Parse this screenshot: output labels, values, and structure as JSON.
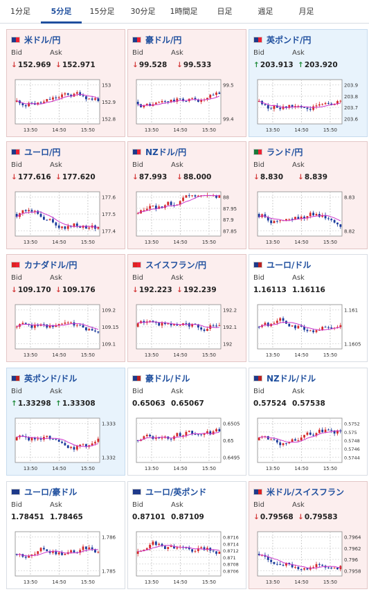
{
  "tabs": [
    {
      "label": "1分足",
      "active": false
    },
    {
      "label": "5分足",
      "active": true
    },
    {
      "label": "15分足",
      "active": false
    },
    {
      "label": "30分足",
      "active": false
    },
    {
      "label": "1時間足",
      "active": false
    },
    {
      "label": "日足",
      "active": false
    },
    {
      "label": "週足",
      "active": false
    },
    {
      "label": "月足",
      "active": false
    }
  ],
  "colors": {
    "up_candle": "#d42a2a",
    "down_candle": "#1a3a9c",
    "ma_line": "#cc33cc",
    "ma2_line": "#33aaee"
  },
  "cards": [
    {
      "pair": "米ドル/円",
      "bid_label": "Bid",
      "ask_label": "Ask",
      "bid": "152.969",
      "ask": "152.971",
      "dir": "down",
      "flag": [
        "#1e3a8a",
        "#e23"
      ],
      "yticks": [
        "153",
        "152.9",
        "152.8"
      ],
      "xticks": [
        "13:50",
        "14:50",
        "15:50"
      ]
    },
    {
      "pair": "豪ドル/円",
      "bid_label": "Bid",
      "ask_label": "Ask",
      "bid": "99.528",
      "ask": "99.533",
      "dir": "down",
      "flag": [
        "#1e3a8a",
        "#e23"
      ],
      "yticks": [
        "99.5",
        "99.4"
      ],
      "xticks": [
        "13:50",
        "14:50",
        "15:50"
      ]
    },
    {
      "pair": "英ポンド/円",
      "bid_label": "Bid",
      "ask_label": "Ask",
      "bid": "203.913",
      "ask": "203.920",
      "dir": "up",
      "flag": [
        "#1e3a8a",
        "#e23"
      ],
      "yticks": [
        "203.9",
        "203.8",
        "203.7",
        "203.6"
      ],
      "xticks": [
        "13:50",
        "14:50",
        "15:50"
      ]
    },
    {
      "pair": "ユーロ/円",
      "bid_label": "Bid",
      "ask_label": "Ask",
      "bid": "177.616",
      "ask": "177.620",
      "dir": "down",
      "flag": [
        "#1e3a8a",
        "#e23"
      ],
      "yticks": [
        "177.6",
        "177.5",
        "177.4"
      ],
      "xticks": [
        "13:50",
        "14:50",
        "15:50"
      ]
    },
    {
      "pair": "NZドル/円",
      "bid_label": "Bid",
      "ask_label": "Ask",
      "bid": "87.993",
      "ask": "88.000",
      "dir": "down",
      "flag": [
        "#1e3a8a",
        "#e23"
      ],
      "yticks": [
        "88",
        "87.95",
        "87.9",
        "87.85"
      ],
      "xticks": [
        "13:50",
        "14:50",
        "15:50"
      ]
    },
    {
      "pair": "ランド/円",
      "bid_label": "Bid",
      "ask_label": "Ask",
      "bid": "8.830",
      "ask": "8.839",
      "dir": "down",
      "flag": [
        "#1a7a3a",
        "#e23"
      ],
      "yticks": [
        "8.83",
        "8.82"
      ],
      "xticks": [
        "13:50",
        "14:50",
        "15:50"
      ]
    },
    {
      "pair": "カナダドル/円",
      "bid_label": "Bid",
      "ask_label": "Ask",
      "bid": "109.170",
      "ask": "109.176",
      "dir": "down",
      "flag": [
        "#d22",
        "#e23"
      ],
      "yticks": [
        "109.2",
        "109.15",
        "109.1"
      ],
      "xticks": [
        "13:50",
        "14:50",
        "15:50"
      ]
    },
    {
      "pair": "スイスフラン/円",
      "bid_label": "Bid",
      "ask_label": "Ask",
      "bid": "192.223",
      "ask": "192.239",
      "dir": "down",
      "flag": [
        "#d22",
        "#e23"
      ],
      "yticks": [
        "192.2",
        "192.1",
        "192"
      ],
      "xticks": [
        "13:50",
        "14:50",
        "15:50"
      ]
    },
    {
      "pair": "ユーロ/ドル",
      "bid_label": "Bid",
      "ask_label": "Ask",
      "bid": "1.16113",
      "ask": "1.16116",
      "dir": "none",
      "flag": [
        "#1e3a8a",
        "#b22"
      ],
      "yticks": [
        "1.161",
        "1.1605"
      ],
      "xticks": [
        "13:50",
        "14:50",
        "15:50"
      ]
    },
    {
      "pair": "英ポンド/ドル",
      "bid_label": "Bid",
      "ask_label": "Ask",
      "bid": "1.33298",
      "ask": "1.33308",
      "dir": "up",
      "flag": [
        "#1e3a8a",
        "#b22"
      ],
      "yticks": [
        "1.333",
        "1.332"
      ],
      "xticks": [
        "13:50",
        "14:50",
        "15:50"
      ]
    },
    {
      "pair": "豪ドル/ドル",
      "bid_label": "Bid",
      "ask_label": "Ask",
      "bid": "0.65063",
      "ask": "0.65067",
      "dir": "none",
      "flag": [
        "#1e3a8a",
        "#b22"
      ],
      "yticks": [
        "0.6505",
        "0.65",
        "0.6495"
      ],
      "xticks": [
        "13:50",
        "14:50",
        "15:50"
      ]
    },
    {
      "pair": "NZドル/ドル",
      "bid_label": "Bid",
      "ask_label": "Ask",
      "bid": "0.57524",
      "ask": "0.57538",
      "dir": "none",
      "flag": [
        "#1e3a8a",
        "#b22"
      ],
      "yticks": [
        "0.5752",
        "0.575",
        "0.5748",
        "0.5746",
        "0.5744"
      ],
      "xticks": [
        "13:50",
        "14:50",
        "15:50"
      ]
    },
    {
      "pair": "ユーロ/豪ドル",
      "bid_label": "Bid",
      "ask_label": "Ask",
      "bid": "1.78451",
      "ask": "1.78465",
      "dir": "none",
      "flag": [
        "#1e3a8a",
        "#1e3a8a"
      ],
      "yticks": [
        "1.786",
        "1.785"
      ],
      "xticks": [
        "13:50",
        "14:50",
        "15:50"
      ]
    },
    {
      "pair": "ユーロ/英ポンド",
      "bid_label": "Bid",
      "ask_label": "Ask",
      "bid": "0.87101",
      "ask": "0.87109",
      "dir": "none",
      "flag": [
        "#1e3a8a",
        "#1e3a8a"
      ],
      "yticks": [
        "0.8716",
        "0.8714",
        "0.8712",
        "0.871",
        "0.8708",
        "0.8706"
      ],
      "xticks": [
        "13:50",
        "14:50",
        "15:50"
      ]
    },
    {
      "pair": "米ドル/スイスフラン",
      "bid_label": "Bid",
      "ask_label": "Ask",
      "bid": "0.79568",
      "ask": "0.79583",
      "dir": "down",
      "flag": [
        "#1e3a8a",
        "#d22"
      ],
      "yticks": [
        "0.7964",
        "0.7962",
        "0.796",
        "0.7958"
      ],
      "xticks": [
        "13:50",
        "14:50",
        "15:50"
      ]
    }
  ]
}
